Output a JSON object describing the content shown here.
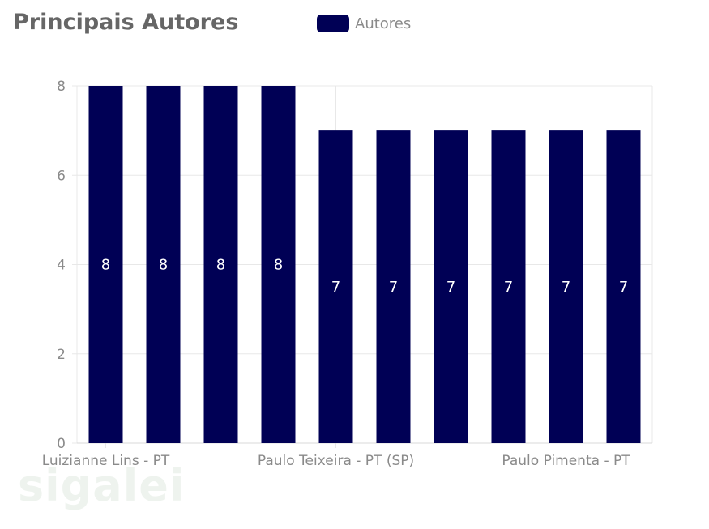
{
  "colors": {
    "bar": "#000055",
    "grid": "#e8e8e8",
    "axis_text": "#8a8a8a",
    "bar_label": "#ffffff",
    "title": "#666666"
  },
  "chart_data": {
    "type": "bar",
    "title": "Principais Autores",
    "series": [
      {
        "name": "Autores",
        "values": [
          8,
          8,
          8,
          8,
          7,
          7,
          7,
          7,
          7,
          7
        ]
      }
    ],
    "categories": [
      "Luizianne Lins - PT",
      "",
      "",
      "",
      "Paulo Teixeira - PT (SP)",
      "",
      "",
      "",
      "Paulo Pimenta - PT",
      ""
    ],
    "x_tick_labels": [
      {
        "index": 0.5,
        "label": "Luizianne Lins - PT"
      },
      {
        "index": 4.5,
        "label": "Paulo Teixeira - PT (SP)"
      },
      {
        "index": 8.5,
        "label": "Paulo Pimenta - PT"
      }
    ],
    "y_ticks": [
      0,
      2,
      4,
      6,
      8
    ],
    "ylim": [
      0,
      8
    ],
    "grid": true,
    "legend": "top"
  },
  "watermark": "sigalei"
}
